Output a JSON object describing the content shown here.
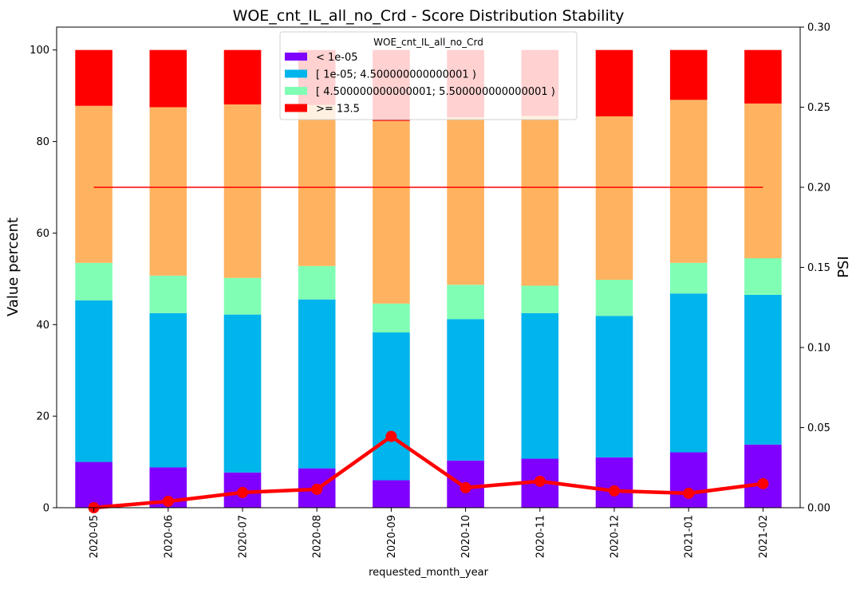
{
  "chart_data": {
    "type": "bar",
    "title": "WOE_cnt_IL_all_no_Crd  - Score Distribution Stability",
    "xlabel": "requested_month_year",
    "ylabel": "Value percent",
    "y2label": "PSI",
    "categories": [
      "2020-05",
      "2020-06",
      "2020-07",
      "2020-08",
      "2020-09",
      "2020-10",
      "2020-11",
      "2020-12",
      "2021-01",
      "2021-02"
    ],
    "ylim": [
      0,
      105
    ],
    "y_ticks": [
      0,
      20,
      40,
      60,
      80,
      100
    ],
    "y_tick_labels": [
      "0",
      "20",
      "40",
      "60",
      "80",
      "100"
    ],
    "y2lim": [
      0,
      0.3
    ],
    "y2_ticks": [
      0,
      0.05,
      0.1,
      0.15,
      0.2,
      0.25,
      0.3
    ],
    "y2_tick_labels": [
      "0.00",
      "0.05",
      "0.10",
      "0.15",
      "0.20",
      "0.25",
      "0.30"
    ],
    "stacked": true,
    "grid": false,
    "legend": {
      "title": "WOE_cnt_IL_all_no_Crd",
      "placement": "upper-center"
    },
    "series": [
      {
        "name": "< 1e-05",
        "color": "#8000ff",
        "in_legend": true,
        "values": [
          10.0,
          8.8,
          7.7,
          8.6,
          6.0,
          10.3,
          10.7,
          11.0,
          12.1,
          13.8
        ]
      },
      {
        "name": "[ 1e-05; 4.500000000000001 )",
        "color": "#00b4ec",
        "in_legend": true,
        "values": [
          35.3,
          33.7,
          34.5,
          36.9,
          32.3,
          30.9,
          31.8,
          30.9,
          34.7,
          32.7
        ]
      },
      {
        "name": "[ 4.500000000000001; 5.500000000000001 )",
        "color": "#80ffb4",
        "in_legend": true,
        "values": [
          8.2,
          8.2,
          8.0,
          7.3,
          6.3,
          7.5,
          6.0,
          7.9,
          6.7,
          8.0
        ]
      },
      {
        "name": "",
        "color": "#ffb360",
        "in_legend": false,
        "values": [
          34.3,
          36.8,
          37.9,
          35.2,
          39.9,
          36.6,
          37.1,
          35.7,
          35.6,
          33.8
        ]
      },
      {
        "name": ">= 13.5",
        "color": "#ff0000",
        "in_legend": true,
        "values": [
          12.2,
          12.5,
          11.9,
          12.0,
          15.5,
          14.7,
          14.4,
          14.5,
          10.9,
          11.7
        ]
      }
    ],
    "psi_line": {
      "axis": "right",
      "color": "#ff0000",
      "values": [
        0.0,
        0.004,
        0.0095,
        0.0115,
        0.0445,
        0.0125,
        0.0165,
        0.0105,
        0.009,
        0.015
      ]
    },
    "threshold_line": {
      "axis": "right",
      "color": "#ff0000",
      "value": 0.2
    }
  }
}
